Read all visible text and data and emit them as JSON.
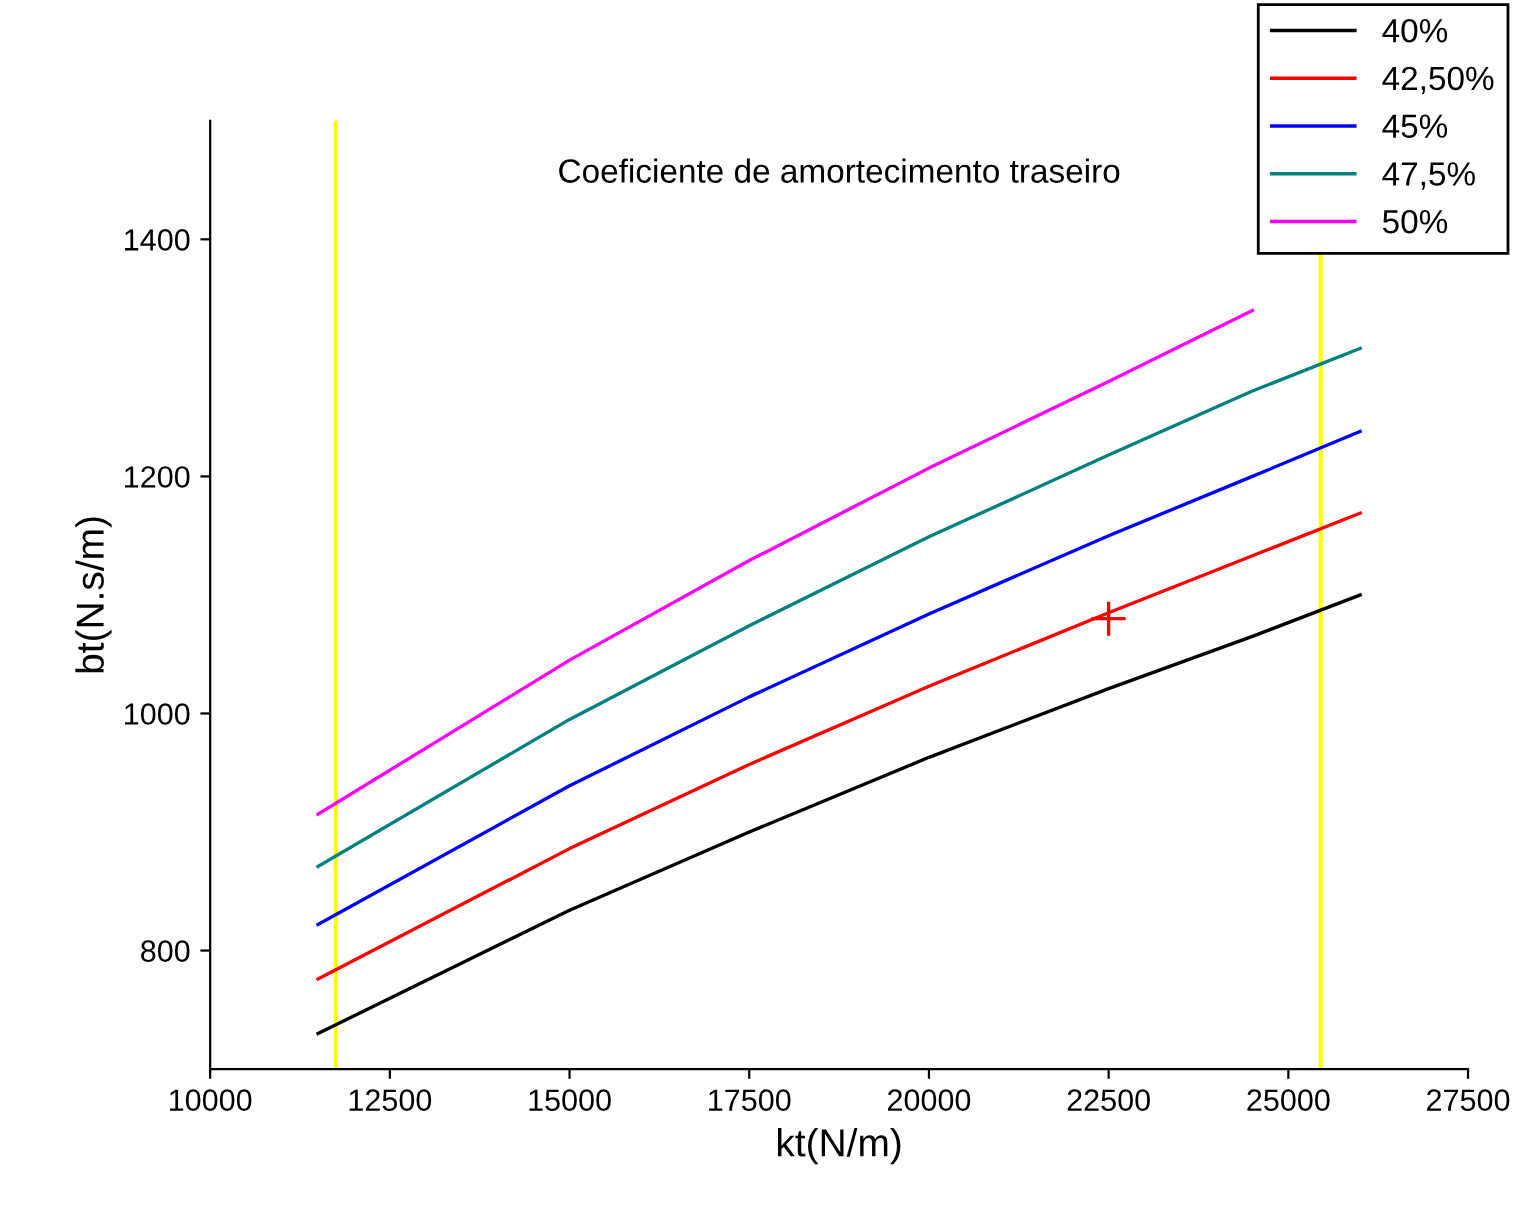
{
  "chart_data": {
    "type": "line",
    "title": "Coeficiente de amortecimento traseiro",
    "xlabel": "kt(N/m)",
    "ylabel": "bt(N.s/m)",
    "x": [
      11500,
      15000,
      17500,
      20000,
      22500,
      24500,
      26000
    ],
    "series": [
      {
        "name": "40%",
        "color": "#000000",
        "values": [
          730,
          834,
          900,
          963,
          1021,
          1065,
          1100
        ]
      },
      {
        "name": "42,50%",
        "color": "#ff0000",
        "values": [
          776,
          886,
          957,
          1023,
          1085,
          1133,
          1169
        ]
      },
      {
        "name": "45%",
        "color": "#0000ff",
        "values": [
          822,
          939,
          1014,
          1084,
          1150,
          1200,
          1238
        ]
      },
      {
        "name": "47,5%",
        "color": "#008080",
        "values": [
          871,
          995,
          1074,
          1149,
          1218,
          1272,
          1308
        ]
      },
      {
        "name": "50%",
        "color": "#ff00ff",
        "values": [
          915,
          1045,
          1129,
          1207,
          1280,
          1340,
          null
        ]
      },
      {
        "type": "scatter",
        "color": "#ff0000",
        "marker": "cross",
        "x": [
          22500
        ],
        "values": [
          1080
        ]
      }
    ],
    "ref_lines": [
      {
        "axis": "x",
        "value": 11750,
        "color": "#ffff00"
      },
      {
        "axis": "x",
        "value": 25450,
        "color": "#ffff00"
      }
    ],
    "xlim": [
      10000,
      27500
    ],
    "xticks": [
      10000,
      12500,
      15000,
      17500,
      20000,
      22500,
      25000,
      27500
    ],
    "ylim": [
      700,
      1500
    ],
    "yticks": [
      800,
      1000,
      1200,
      1400
    ],
    "grid": false,
    "legend": "top right"
  }
}
